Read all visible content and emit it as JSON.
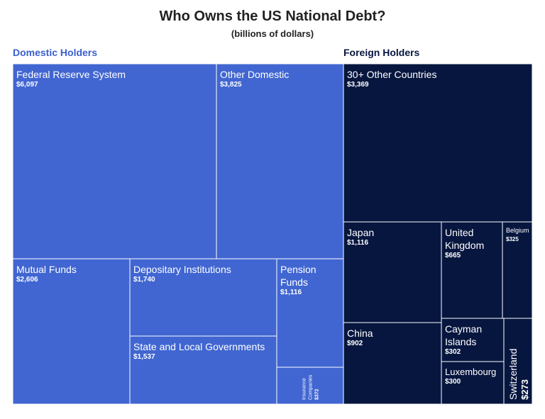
{
  "title": "Who Owns the US National Debt?",
  "subtitle": "(billions of dollars)",
  "colors": {
    "domestic": "#4166d1",
    "foreign": "#06163f",
    "text": "#ffffff",
    "title": "#222222"
  },
  "chart_data": {
    "type": "treemap",
    "title": "Who Owns the US National Debt?",
    "subtitle": "(billions of dollars)",
    "units": "billions of dollars",
    "groups": [
      {
        "name": "Domestic Holders",
        "color": "#4166d1",
        "items": [
          {
            "label": "Federal Reserve System",
            "value": 6097,
            "value_label": "$6,097"
          },
          {
            "label": "Other Domestic",
            "value": 3825,
            "value_label": "$3,825"
          },
          {
            "label": "Mutual Funds",
            "value": 2606,
            "value_label": "$2,606"
          },
          {
            "label": "Depositary Institutions",
            "value": 1740,
            "value_label": "$1,740"
          },
          {
            "label": "State and Local Governments",
            "value": 1537,
            "value_label": "$1,537"
          },
          {
            "label": "Pension Funds",
            "value": 1116,
            "value_label": "$1,116"
          },
          {
            "label": "Insurance Companies",
            "value": 372,
            "value_label": "$372"
          }
        ]
      },
      {
        "name": "Foreign Holders",
        "color": "#06163f",
        "items": [
          {
            "label": "30+ Other Countries",
            "value": 3369,
            "value_label": "$3,369"
          },
          {
            "label": "Japan",
            "value": 1116,
            "value_label": "$1,116"
          },
          {
            "label": "China",
            "value": 902,
            "value_label": "$902"
          },
          {
            "label": "United Kingdom",
            "value": 665,
            "value_label": "$665"
          },
          {
            "label": "Belgium",
            "value": 325,
            "value_label": "$325"
          },
          {
            "label": "Cayman Islands",
            "value": 302,
            "value_label": "$302"
          },
          {
            "label": "Luxembourg",
            "value": 300,
            "value_label": "$300"
          },
          {
            "label": "Switzerland",
            "value": 273,
            "value_label": "$273"
          }
        ]
      }
    ]
  }
}
